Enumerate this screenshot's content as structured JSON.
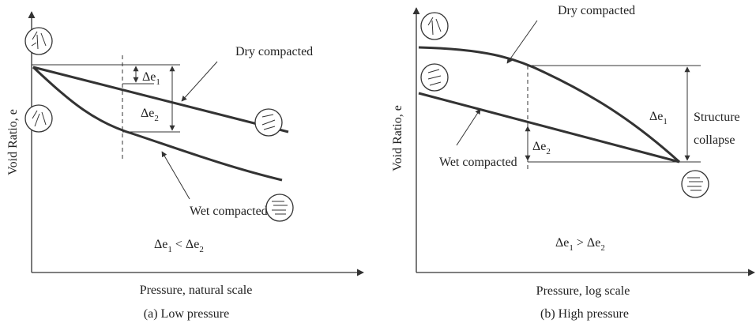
{
  "panels": [
    {
      "y_axis_label": "Void Ratio, e",
      "x_axis_label": "Pressure, natural scale",
      "caption": "(a) Low pressure",
      "dry_label": "Dry compacted",
      "wet_label": "Wet compacted",
      "delta_1": {
        "base": "Δe",
        "sub": "1"
      },
      "delta_2": {
        "base": "Δe",
        "sub": "2"
      },
      "relation": {
        "left": "Δe",
        "left_sub": "1",
        "op": " < Δe",
        "right_sub": "2"
      }
    },
    {
      "y_axis_label": "Void Ratio, e",
      "x_axis_label": "Pressure, log scale",
      "caption": "(b) High pressure",
      "dry_label": "Dry compacted",
      "wet_label": "Wet compacted",
      "delta_1": {
        "base": "Δe",
        "sub": "1"
      },
      "delta_2": {
        "base": "Δe",
        "sub": "2"
      },
      "relation": {
        "left": "Δe",
        "left_sub": "1",
        "op": " > Δe",
        "right_sub": "2"
      },
      "collapse_label": [
        "Structure",
        "collapse"
      ]
    }
  ]
}
